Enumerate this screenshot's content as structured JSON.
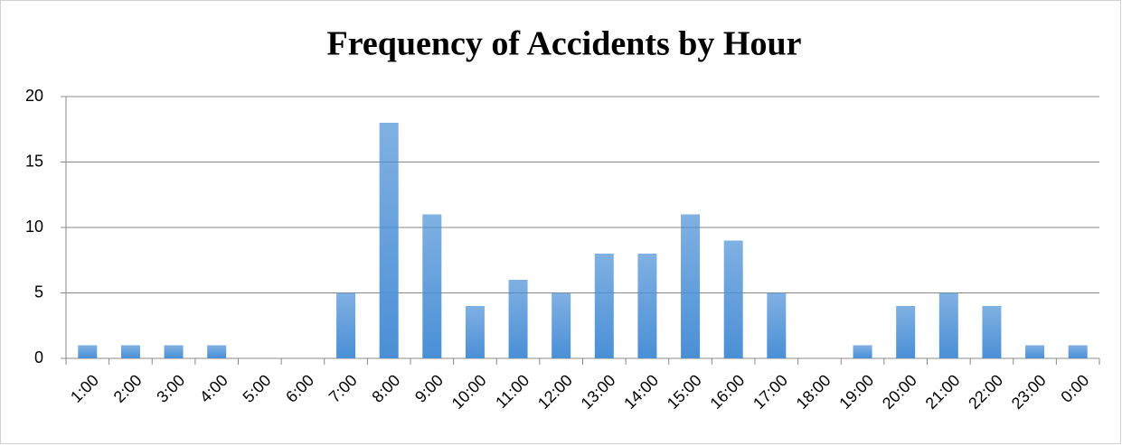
{
  "chart_data": {
    "type": "bar",
    "title": "Frequency of Accidents by Hour",
    "categories": [
      "1:00",
      "2:00",
      "3:00",
      "4:00",
      "5:00",
      "6:00",
      "7:00",
      "8:00",
      "9:00",
      "10:00",
      "11:00",
      "12:00",
      "13:00",
      "14:00",
      "15:00",
      "16:00",
      "17:00",
      "18:00",
      "19:00",
      "20:00",
      "21:00",
      "22:00",
      "23:00",
      "0:00"
    ],
    "values": [
      1,
      1,
      1,
      1,
      0,
      0,
      5,
      18,
      11,
      4,
      6,
      5,
      8,
      8,
      11,
      9,
      5,
      0,
      1,
      4,
      5,
      4,
      1,
      1
    ],
    "color": "#4a8fd6",
    "ylim": [
      0,
      20
    ],
    "yticks": [
      0,
      5,
      10,
      15,
      20
    ],
    "grid": true
  }
}
